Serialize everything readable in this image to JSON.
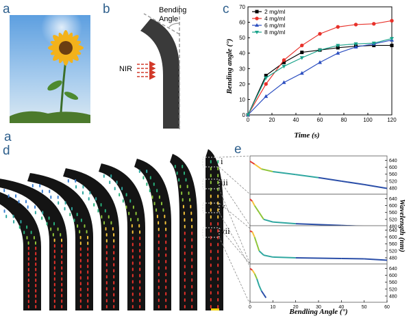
{
  "panels": {
    "a": {
      "label": "a"
    },
    "b": {
      "label": "b",
      "bending_text_1": "Bending",
      "bending_text_2": "Angle",
      "nir": "NIR"
    },
    "c": {
      "label": "c"
    },
    "d": {
      "label": "d",
      "markers": [
        "i",
        "iii",
        "v",
        "vii"
      ]
    },
    "e": {
      "label": "e"
    }
  },
  "chart_data": [
    {
      "type": "line",
      "panel": "c",
      "xlabel": "Time (s)",
      "ylabel": "Bending angle (°)",
      "xlim": [
        0,
        120
      ],
      "ylim": [
        0,
        70
      ],
      "xticks": [
        "0",
        "20",
        "40",
        "60",
        "80",
        "100",
        "120"
      ],
      "yticks": [
        "0",
        "10",
        "20",
        "30",
        "40",
        "50",
        "60",
        "70"
      ],
      "legend_position": "top-left",
      "x": [
        0,
        15,
        30,
        45,
        60,
        75,
        90,
        105,
        120
      ],
      "series": [
        {
          "name": "2 mg/ml",
          "color": "#000000",
          "marker": "square",
          "values": [
            0,
            25.5,
            34,
            40.5,
            42,
            43.5,
            44.5,
            45,
            45
          ]
        },
        {
          "name": "4 mg/ml",
          "color": "#e8312a",
          "marker": "circle",
          "values": [
            0,
            20,
            35.5,
            45,
            52.5,
            57,
            58.5,
            59,
            61
          ]
        },
        {
          "name": "6 mg/ml",
          "color": "#2b4ec0",
          "marker": "triangle",
          "values": [
            0,
            12,
            21,
            27,
            34,
            40,
            44,
            46,
            48.5
          ]
        },
        {
          "name": "8 mg/ml",
          "color": "#19a38b",
          "marker": "triangle-down",
          "values": [
            0,
            24,
            31.5,
            37,
            42,
            45,
            46,
            46.5,
            49.5
          ]
        }
      ]
    },
    {
      "type": "line",
      "panel": "e",
      "xlabel": "Bendling Angle (°)",
      "ylabel": "Wavelength (nm)",
      "xticks": [
        "0",
        "10",
        "20",
        "30",
        "40",
        "50",
        "60"
      ],
      "yticks": [
        "480",
        "520",
        "560",
        "600",
        "640"
      ],
      "subplots": [
        {
          "label": "i",
          "x": [
            0,
            2,
            5,
            10,
            20,
            30,
            40,
            50,
            60
          ],
          "values": [
            635,
            618,
            590,
            575,
            558,
            540,
            520,
            500,
            478
          ]
        },
        {
          "label": "iii",
          "x": [
            0,
            1,
            2,
            4,
            6,
            10,
            20,
            30,
            40,
            50,
            60
          ],
          "values": [
            638,
            625,
            600,
            560,
            520,
            505,
            495,
            490,
            485,
            480,
            470
          ]
        },
        {
          "label": "v",
          "x": [
            0,
            1,
            2,
            3,
            4,
            6,
            10,
            20,
            30,
            40,
            50,
            60
          ],
          "values": [
            635,
            630,
            600,
            560,
            520,
            495,
            484,
            480,
            478,
            476,
            474,
            466
          ]
        },
        {
          "label": "vii",
          "x": [
            0,
            1,
            2,
            3,
            4,
            5,
            6,
            7
          ],
          "values": [
            640,
            630,
            610,
            580,
            540,
            510,
            490,
            470
          ]
        }
      ]
    }
  ]
}
